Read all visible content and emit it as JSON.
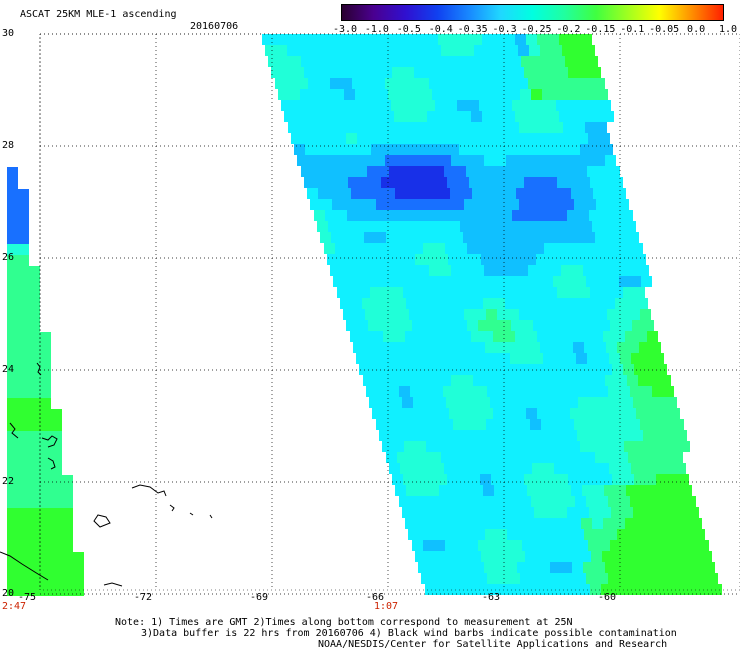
{
  "header": {
    "title": "ASCAT 25KM MLE-1 ascending",
    "date": "20160706"
  },
  "colorbar": {
    "labels": [
      "-3.0",
      "-1.0",
      "-0.5",
      "-0.4",
      "-0.35",
      "-0.3",
      "-0.25",
      "-0.2",
      "-0.15",
      "-0.1",
      "-0.05",
      "0.0",
      "1.0"
    ],
    "colors": [
      "#2a0030",
      "#4a0090",
      "#3010d0",
      "#1040f0",
      "#1888ff",
      "#20d8ff",
      "#00ffe0",
      "#20ffa0",
      "#40ff40",
      "#a0ff20",
      "#ffff00",
      "#ff9000",
      "#ff2000"
    ]
  },
  "map": {
    "lon_ticks": [
      "-75",
      "-72",
      "-69",
      "-66",
      "-63",
      "-60"
    ],
    "lat_ticks": [
      "30",
      "28",
      "26",
      "24",
      "22",
      "20"
    ],
    "pass_times": [
      "2:47",
      "1:07"
    ]
  },
  "notes": {
    "line1": "Note: 1) Times are GMT 2)Times along bottom correspond to measurement at 25N",
    "line2": "3)Data buffer is 22 hrs from 20160706 4) Black wind barbs indicate possible contamination",
    "line3": "NOAA/NESDIS/Center for Satellite Applications and Research"
  }
}
